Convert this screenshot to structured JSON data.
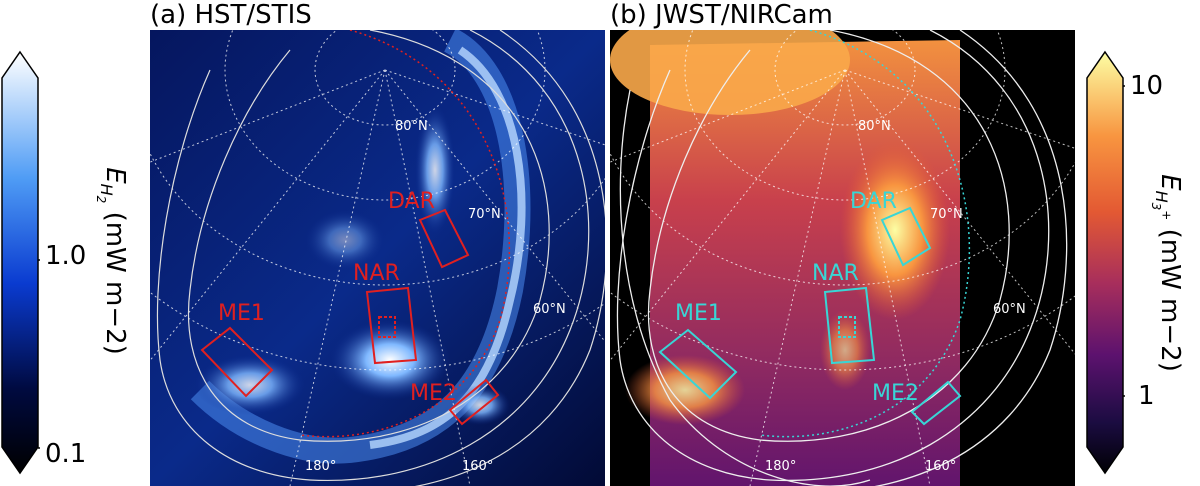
{
  "panels": [
    {
      "title": "(a) HST/STIS",
      "box_color": "#e02020",
      "regions": [
        "DAR",
        "NAR",
        "ME1",
        "ME2"
      ],
      "grid_labels": [
        "80°N",
        "70°N",
        "60°N",
        "180°",
        "160°"
      ]
    },
    {
      "title": "(b) JWST/NIRCam",
      "box_color": "#38d6d6",
      "regions": [
        "DAR",
        "NAR",
        "ME1",
        "ME2"
      ],
      "grid_labels": [
        "80°N",
        "70°N",
        "60°N",
        "180°",
        "160°"
      ]
    }
  ],
  "colorbars": {
    "left": {
      "quantity": "E",
      "subscript": "H2",
      "unit": "(mW m−2)",
      "ticks": [
        "1.0",
        "0.1"
      ],
      "colors": [
        "#ffffff",
        "#4f9cf5",
        "#0a3bd0",
        "#000a40",
        "#000000"
      ]
    },
    "right": {
      "quantity": "E",
      "subscript": "H3+",
      "unit": "(mW m−2)",
      "ticks": [
        "10",
        "1"
      ],
      "colors": [
        "#fcfea4",
        "#f89540",
        "#e35933",
        "#a72e5c",
        "#5c126e",
        "#1b0c41",
        "#000004"
      ]
    }
  }
}
